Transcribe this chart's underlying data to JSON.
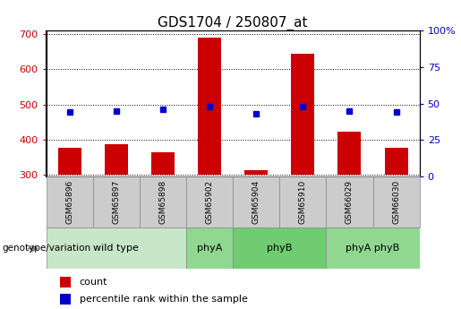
{
  "title": "GDS1704 / 250807_at",
  "samples": [
    "GSM65896",
    "GSM65897",
    "GSM65898",
    "GSM65902",
    "GSM65904",
    "GSM65910",
    "GSM66029",
    "GSM66030"
  ],
  "counts": [
    375,
    385,
    363,
    692,
    312,
    645,
    422,
    376
  ],
  "percentile_ranks": [
    44,
    45,
    46,
    48,
    43,
    48,
    45,
    44
  ],
  "groups": [
    {
      "label": "wild type",
      "span": [
        0,
        2
      ],
      "color": "#c8e6c8"
    },
    {
      "label": "phyA",
      "span": [
        3,
        3
      ],
      "color": "#90d890"
    },
    {
      "label": "phyB",
      "span": [
        4,
        5
      ],
      "color": "#70cc70"
    },
    {
      "label": "phyA phyB",
      "span": [
        6,
        7
      ],
      "color": "#90d890"
    }
  ],
  "ylim_left": [
    295,
    710
  ],
  "ylim_right": [
    0,
    100
  ],
  "yticks_left": [
    300,
    400,
    500,
    600,
    700
  ],
  "yticks_right": [
    0,
    25,
    50,
    75,
    100
  ],
  "bar_color": "#cc0000",
  "dot_color": "#0000cc",
  "bar_width": 0.5,
  "baseline": 300,
  "left_tick_color": "#cc0000",
  "right_tick_color": "#0000cc",
  "legend_items": [
    "count",
    "percentile rank within the sample"
  ],
  "genotype_label": "genotype/variation",
  "sample_cell_color": "#cccccc",
  "title_fontsize": 11,
  "tick_fontsize": 8,
  "label_fontsize": 8
}
